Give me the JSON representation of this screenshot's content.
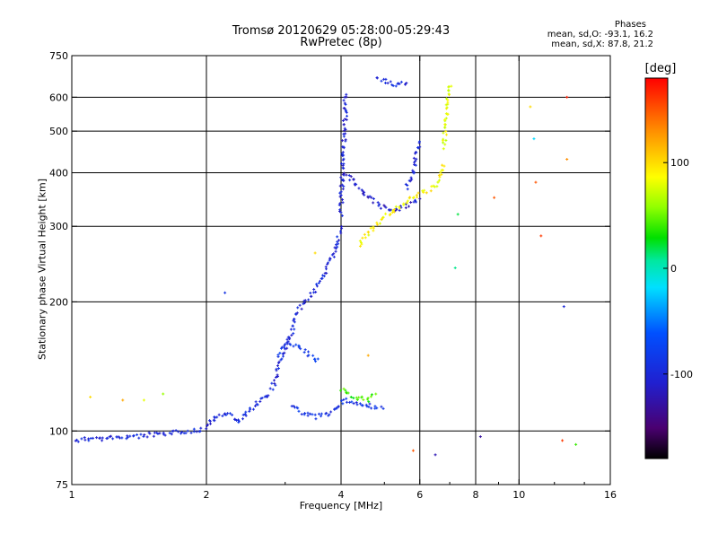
{
  "chart_data": {
    "type": "scatter",
    "title_line1": "Tromsø 20120629 05:28:00-05:29:43",
    "title_line2": "RwPretec (8p)",
    "stats": {
      "heading": "Phases",
      "o_line": "mean, sd,O:  -93.1, 16.2",
      "x_line": "mean, sd,X:  87.8, 21.2"
    },
    "xlabel": "Frequency [MHz]",
    "ylabel": "Stationary phase Virtual Height [km]",
    "x_scale": "log",
    "y_scale": "log",
    "xlim": [
      1,
      16
    ],
    "ylim": [
      75,
      750
    ],
    "x_ticks": [
      1,
      2,
      4,
      6,
      8,
      10,
      16
    ],
    "x_tick_labels": [
      "1",
      "2",
      "4",
      "6",
      "8",
      "10",
      "16"
    ],
    "x_grid": [
      2,
      4,
      6,
      8,
      10
    ],
    "y_ticks": [
      75,
      100,
      200,
      300,
      400,
      500,
      600,
      750
    ],
    "y_tick_labels": [
      "75",
      "100",
      "200",
      "300",
      "400",
      "500",
      "600",
      "750"
    ],
    "y_grid": [
      100,
      200,
      300,
      400,
      500,
      600
    ],
    "grid": true,
    "colorbar": {
      "unit": "[deg]",
      "min": -180,
      "max": 180,
      "ticks": [
        100,
        0,
        -100
      ],
      "tick_labels": [
        "100",
        "0",
        "-100"
      ],
      "colormap": "rainbow (black-purple-blue-cyan-green-yellow-orange-red)"
    },
    "traces": [
      {
        "name": "",
        "phase": -100,
        "x": [
          1.02,
          1.1,
          1.2,
          1.3,
          1.4,
          1.5,
          1.6,
          1.7,
          1.8,
          1.9,
          2.0,
          2.05,
          2.1
        ],
        "y": [
          95,
          96,
          96,
          97,
          97,
          98,
          98,
          99,
          100,
          100,
          102,
          106,
          107
        ]
      },
      {
        "name": "",
        "phase": -95,
        "x": [
          2.1,
          2.25,
          2.35,
          2.5,
          2.65,
          2.8
        ],
        "y": [
          107,
          110,
          105,
          112,
          118,
          122
        ]
      },
      {
        "name": "",
        "phase": -100,
        "x": [
          2.8,
          2.9,
          3.0,
          3.1,
          3.2,
          3.4,
          3.6,
          3.8,
          3.9,
          4.0
        ],
        "y": [
          125,
          140,
          155,
          170,
          190,
          205,
          225,
          250,
          270,
          300
        ]
      },
      {
        "name": "",
        "phase": -105,
        "x": [
          4.0,
          4.02,
          4.05,
          4.08,
          4.1
        ],
        "y": [
          320,
          380,
          450,
          520,
          620
        ]
      },
      {
        "name": "",
        "phase": -110,
        "x": [
          4.1,
          4.3,
          4.6,
          5.0,
          5.4,
          5.8,
          6.0
        ],
        "y": [
          400,
          380,
          350,
          330,
          330,
          340,
          350
        ]
      },
      {
        "name": "",
        "phase": -100,
        "x": [
          5.6,
          5.8,
          5.9,
          6.0
        ],
        "y": [
          370,
          400,
          440,
          480
        ]
      },
      {
        "name": "",
        "phase": 90,
        "x": [
          4.4,
          4.6,
          4.9,
          5.3,
          5.7,
          6.0,
          6.3,
          6.6,
          6.8
        ],
        "y": [
          270,
          290,
          310,
          330,
          345,
          355,
          365,
          380,
          420
        ]
      },
      {
        "name": "",
        "phase": 80,
        "x": [
          6.8,
          6.85,
          6.9,
          6.95,
          7.0
        ],
        "y": [
          460,
          510,
          560,
          610,
          650
        ]
      },
      {
        "name": "",
        "phase": -90,
        "x": [
          3.1,
          3.3,
          3.5,
          3.7,
          3.9,
          4.1,
          4.4,
          4.7,
          5.0
        ],
        "y": [
          115,
          110,
          108,
          109,
          112,
          118,
          116,
          114,
          112
        ]
      },
      {
        "name": "",
        "phase": -85,
        "x": [
          2.9,
          3.0,
          3.2,
          3.4,
          3.6
        ],
        "y": [
          150,
          160,
          158,
          150,
          145
        ]
      },
      {
        "name": "",
        "phase": 40,
        "x": [
          4.0,
          4.3,
          4.6,
          4.8
        ],
        "y": [
          125,
          120,
          118,
          122
        ]
      },
      {
        "name": "",
        "phase": -100,
        "x": [
          4.8,
          5.1,
          5.4,
          5.7
        ],
        "y": [
          660,
          650,
          640,
          650
        ]
      }
    ],
    "scattered_points": [
      {
        "x": 1.1,
        "y": 120,
        "phase": 100
      },
      {
        "x": 1.3,
        "y": 118,
        "phase": 120
      },
      {
        "x": 1.45,
        "y": 118,
        "phase": 80
      },
      {
        "x": 1.6,
        "y": 122,
        "phase": 60
      },
      {
        "x": 2.2,
        "y": 210,
        "phase": -90
      },
      {
        "x": 3.5,
        "y": 260,
        "phase": 100
      },
      {
        "x": 4.6,
        "y": 150,
        "phase": 120
      },
      {
        "x": 5.8,
        "y": 90,
        "phase": 150
      },
      {
        "x": 6.5,
        "y": 88,
        "phase": -120
      },
      {
        "x": 7.2,
        "y": 240,
        "phase": 10
      },
      {
        "x": 7.3,
        "y": 320,
        "phase": 20
      },
      {
        "x": 8.2,
        "y": 97,
        "phase": -130
      },
      {
        "x": 8.8,
        "y": 350,
        "phase": 150
      },
      {
        "x": 10.8,
        "y": 480,
        "phase": -20
      },
      {
        "x": 10.9,
        "y": 380,
        "phase": 150
      },
      {
        "x": 10.6,
        "y": 570,
        "phase": 100
      },
      {
        "x": 11.2,
        "y": 285,
        "phase": 160
      },
      {
        "x": 12.8,
        "y": 430,
        "phase": 130
      },
      {
        "x": 12.6,
        "y": 195,
        "phase": -100
      },
      {
        "x": 12.5,
        "y": 95,
        "phase": 160
      },
      {
        "x": 13.4,
        "y": 93,
        "phase": 40
      },
      {
        "x": 12.8,
        "y": 600,
        "phase": 170
      }
    ]
  }
}
